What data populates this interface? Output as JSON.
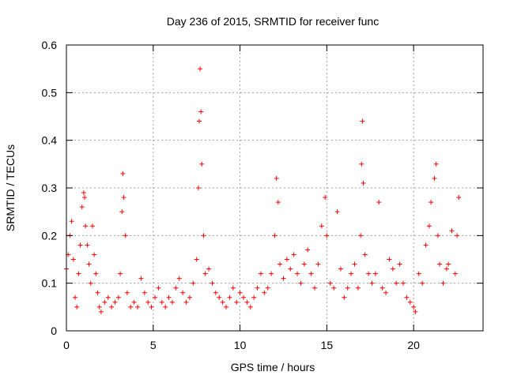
{
  "chart_data": {
    "type": "scatter",
    "title": "Day 236 of 2015, SRMTID for receiver func",
    "xlabel": "GPS time / hours",
    "ylabel": "SRMTID / TECUs",
    "xlim": [
      0,
      24
    ],
    "ylim": [
      0,
      0.6
    ],
    "x_ticks": [
      0,
      5,
      10,
      15,
      20
    ],
    "x_tick_labels": [
      "0",
      "5",
      "10",
      "15",
      "20"
    ],
    "y_ticks": [
      0,
      0.1,
      0.2,
      0.3,
      0.4,
      0.5,
      0.6
    ],
    "y_tick_labels": [
      "0",
      "0.1",
      "0.2",
      "0.3",
      "0.4",
      "0.5",
      "0.6"
    ],
    "grid": true,
    "marker": "+",
    "series": [
      {
        "name": "SRMTID",
        "color": "#ff0000",
        "x": [
          0.0,
          0.1,
          0.2,
          0.3,
          0.4,
          0.5,
          0.6,
          0.7,
          0.8,
          0.9,
          1.0,
          1.05,
          1.1,
          1.2,
          1.3,
          1.4,
          1.5,
          1.6,
          1.7,
          1.8,
          1.9,
          2.0,
          2.2,
          2.4,
          2.6,
          2.8,
          3.0,
          3.1,
          3.2,
          3.25,
          3.3,
          3.4,
          3.5,
          3.7,
          3.9,
          4.1,
          4.3,
          4.5,
          4.7,
          4.9,
          5.1,
          5.3,
          5.5,
          5.7,
          5.9,
          6.1,
          6.3,
          6.5,
          6.7,
          6.9,
          7.1,
          7.3,
          7.5,
          7.6,
          7.65,
          7.7,
          7.75,
          7.8,
          7.9,
          8.0,
          8.2,
          8.4,
          8.6,
          8.8,
          9.0,
          9.2,
          9.4,
          9.6,
          9.8,
          10.0,
          10.2,
          10.4,
          10.6,
          10.8,
          11.0,
          11.2,
          11.4,
          11.6,
          11.8,
          12.0,
          12.1,
          12.2,
          12.3,
          12.5,
          12.7,
          12.9,
          13.1,
          13.3,
          13.5,
          13.7,
          13.9,
          14.1,
          14.3,
          14.5,
          14.7,
          14.9,
          15.0,
          15.2,
          15.4,
          15.6,
          15.8,
          16.0,
          16.2,
          16.4,
          16.6,
          16.8,
          16.95,
          17.0,
          17.05,
          17.1,
          17.2,
          17.4,
          17.6,
          17.8,
          18.0,
          18.2,
          18.4,
          18.6,
          18.8,
          19.0,
          19.2,
          19.4,
          19.6,
          19.8,
          20.0,
          20.1,
          20.3,
          20.5,
          20.7,
          20.9,
          21.0,
          21.2,
          21.3,
          21.4,
          21.5,
          21.7,
          21.9,
          22.0,
          22.2,
          22.4,
          22.5,
          22.6
        ],
        "y": [
          0.13,
          0.16,
          0.2,
          0.23,
          0.15,
          0.07,
          0.05,
          0.12,
          0.18,
          0.26,
          0.29,
          0.28,
          0.22,
          0.18,
          0.14,
          0.1,
          0.22,
          0.16,
          0.12,
          0.08,
          0.05,
          0.04,
          0.06,
          0.07,
          0.05,
          0.06,
          0.07,
          0.12,
          0.25,
          0.33,
          0.28,
          0.2,
          0.08,
          0.05,
          0.06,
          0.05,
          0.11,
          0.08,
          0.06,
          0.05,
          0.07,
          0.09,
          0.06,
          0.05,
          0.07,
          0.06,
          0.09,
          0.11,
          0.08,
          0.06,
          0.07,
          0.1,
          0.15,
          0.3,
          0.44,
          0.55,
          0.46,
          0.35,
          0.2,
          0.12,
          0.13,
          0.1,
          0.08,
          0.07,
          0.06,
          0.05,
          0.07,
          0.09,
          0.06,
          0.08,
          0.07,
          0.06,
          0.05,
          0.07,
          0.09,
          0.12,
          0.08,
          0.09,
          0.12,
          0.2,
          0.32,
          0.27,
          0.14,
          0.11,
          0.15,
          0.13,
          0.16,
          0.12,
          0.1,
          0.14,
          0.17,
          0.12,
          0.09,
          0.14,
          0.22,
          0.28,
          0.2,
          0.1,
          0.09,
          0.25,
          0.13,
          0.07,
          0.09,
          0.12,
          0.14,
          0.09,
          0.2,
          0.35,
          0.44,
          0.31,
          0.16,
          0.12,
          0.1,
          0.12,
          0.27,
          0.09,
          0.08,
          0.15,
          0.13,
          0.1,
          0.14,
          0.1,
          0.07,
          0.06,
          0.05,
          0.04,
          0.12,
          0.1,
          0.18,
          0.22,
          0.27,
          0.32,
          0.35,
          0.2,
          0.14,
          0.1,
          0.13,
          0.14,
          0.21,
          0.12,
          0.2,
          0.28
        ]
      }
    ]
  }
}
